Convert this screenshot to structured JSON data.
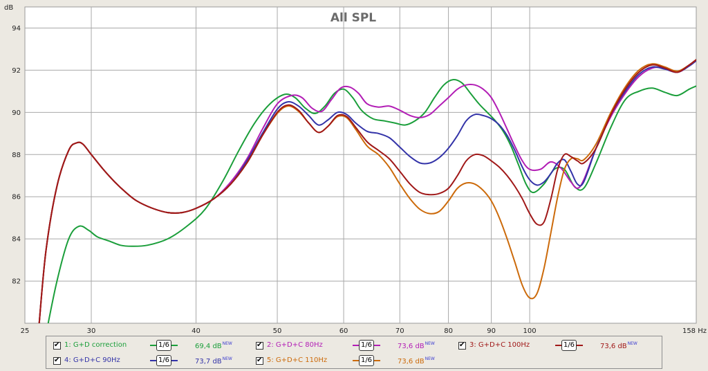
{
  "chart_data": {
    "type": "line",
    "title": "All SPL",
    "ylabel": "dB",
    "xlabel": "Hz",
    "xscale": "log",
    "xlim": [
      25,
      158
    ],
    "ylim": [
      80,
      95
    ],
    "grid": true,
    "x_ticks": [
      25,
      30,
      40,
      50,
      60,
      70,
      80,
      90,
      100,
      158
    ],
    "x_tick_labels": [
      "25",
      "30",
      "40",
      "50",
      "60",
      "70",
      "80",
      "90",
      "100",
      "158 Hz"
    ],
    "y_ticks": [
      82,
      84,
      86,
      88,
      90,
      92,
      94
    ],
    "y_tick_labels": [
      "82",
      "84",
      "86",
      "88",
      "90",
      "92",
      "94"
    ],
    "series": [
      {
        "name": "1: G+D correction",
        "color": "#1a9e3a",
        "smoothing": "1/6",
        "level": "69,4 dB",
        "badge": "NEW",
        "x": [
          26.5,
          27.3,
          28.2,
          29.0,
          29.8,
          30.5,
          31.5,
          32.5,
          33.5,
          35.0,
          37.0,
          39.0,
          41.0,
          43.0,
          45.0,
          47.0,
          49.0,
          51.0,
          52.5,
          54.0,
          55.5,
          57.0,
          58.5,
          60.0,
          61.5,
          63.0,
          65.0,
          67.0,
          69.0,
          71.0,
          73.0,
          75.0,
          77.0,
          79.0,
          81.0,
          83.0,
          85.0,
          87.0,
          89.0,
          91.0,
          93.0,
          95.0,
          97.0,
          99.0,
          101.0,
          104.0,
          107.0,
          110.0,
          113.0,
          116.0,
          120.0,
          125.0,
          130.0,
          135.0,
          140.0,
          145.0,
          150.0,
          155.0,
          158.0
        ],
        "values": [
          79.5,
          82.0,
          84.0,
          84.6,
          84.4,
          84.1,
          83.9,
          83.7,
          83.65,
          83.7,
          84.0,
          84.6,
          85.4,
          86.7,
          88.2,
          89.5,
          90.4,
          90.85,
          90.7,
          90.2,
          89.95,
          90.3,
          90.9,
          91.1,
          90.7,
          90.1,
          89.7,
          89.6,
          89.5,
          89.4,
          89.6,
          90.0,
          90.7,
          91.3,
          91.55,
          91.4,
          90.9,
          90.4,
          90.0,
          89.6,
          89.1,
          88.4,
          87.5,
          86.6,
          86.2,
          86.6,
          87.3,
          87.3,
          86.5,
          86.4,
          87.6,
          89.3,
          90.6,
          91.0,
          91.15,
          90.95,
          90.8,
          91.1,
          91.25
        ]
      },
      {
        "name": "2: G+D+C 80Hz",
        "color": "#b21db5",
        "smoothing": "1/6",
        "level": "73,6 dB",
        "badge": "NEW",
        "x": [
          26.0,
          26.5,
          27.3,
          28.2,
          28.8,
          29.3,
          30.0,
          31.0,
          32.0,
          33.0,
          34.0,
          35.5,
          37.0,
          38.5,
          40.0,
          42.0,
          44.0,
          46.0,
          48.0,
          50.0,
          52.0,
          53.5,
          55.0,
          56.5,
          58.0,
          59.5,
          61.0,
          62.5,
          64.0,
          66.0,
          68.0,
          70.0,
          72.0,
          74.0,
          76.0,
          78.0,
          80.0,
          82.0,
          84.0,
          86.0,
          88.0,
          90.0,
          92.0,
          94.0,
          96.0,
          98.0,
          100.0,
          103.0,
          106.0,
          109.0,
          112.0,
          114.0,
          116.0,
          120.0,
          125.0,
          130.0,
          135.0,
          140.0,
          145.0,
          150.0,
          155.0,
          158.0
        ],
        "values": [
          80.0,
          83.5,
          86.5,
          88.2,
          88.55,
          88.5,
          88.0,
          87.3,
          86.7,
          86.2,
          85.8,
          85.45,
          85.25,
          85.25,
          85.45,
          85.9,
          86.7,
          87.8,
          89.2,
          90.4,
          90.8,
          90.7,
          90.2,
          90.05,
          90.6,
          91.15,
          91.2,
          90.9,
          90.4,
          90.25,
          90.3,
          90.1,
          89.85,
          89.75,
          89.9,
          90.3,
          90.7,
          91.1,
          91.3,
          91.3,
          91.1,
          90.7,
          90.0,
          89.2,
          88.4,
          87.7,
          87.3,
          87.3,
          87.65,
          87.35,
          86.7,
          86.4,
          86.8,
          88.3,
          89.8,
          90.9,
          91.7,
          92.1,
          92.1,
          91.9,
          92.2,
          92.45
        ]
      },
      {
        "name": "3: G+D+C 100Hz",
        "color": "#a01818",
        "smoothing": "1/6",
        "level": "73,6 dB",
        "badge": "NEW",
        "x": [
          26.0,
          26.5,
          27.3,
          28.2,
          28.8,
          29.3,
          30.0,
          31.0,
          32.0,
          33.0,
          34.0,
          35.5,
          37.0,
          38.5,
          40.0,
          42.0,
          44.0,
          46.0,
          48.0,
          50.0,
          51.5,
          53.0,
          54.5,
          56.0,
          57.5,
          59.0,
          60.5,
          62.0,
          64.0,
          66.0,
          68.0,
          70.0,
          72.0,
          74.0,
          76.0,
          78.0,
          80.0,
          82.0,
          84.0,
          86.0,
          88.0,
          90.0,
          92.0,
          94.0,
          96.0,
          98.0,
          100.0,
          102.0,
          104.0,
          106.0,
          108.0,
          110.0,
          112.0,
          114.0,
          116.0,
          120.0,
          125.0,
          130.0,
          135.0,
          140.0,
          145.0,
          150.0,
          155.0,
          158.0
        ],
        "values": [
          80.0,
          83.5,
          86.5,
          88.2,
          88.55,
          88.5,
          88.0,
          87.3,
          86.7,
          86.2,
          85.8,
          85.45,
          85.25,
          85.25,
          85.45,
          85.9,
          86.6,
          87.6,
          88.9,
          90.0,
          90.35,
          90.1,
          89.5,
          89.05,
          89.35,
          89.85,
          89.8,
          89.3,
          88.6,
          88.2,
          87.8,
          87.2,
          86.6,
          86.2,
          86.1,
          86.15,
          86.4,
          87.0,
          87.7,
          88.0,
          87.95,
          87.7,
          87.4,
          87.0,
          86.5,
          85.9,
          85.2,
          84.7,
          84.8,
          85.9,
          87.3,
          88.0,
          87.9,
          87.7,
          87.6,
          88.3,
          89.9,
          91.1,
          91.9,
          92.25,
          92.1,
          91.9,
          92.25,
          92.5
        ]
      },
      {
        "name": "4: G+D+C 90Hz",
        "color": "#3333a8",
        "smoothing": "1/6",
        "level": "73,7 dB",
        "badge": "NEW",
        "x": [
          26.0,
          26.5,
          27.3,
          28.2,
          28.8,
          29.3,
          30.0,
          31.0,
          32.0,
          33.0,
          34.0,
          35.5,
          37.0,
          38.5,
          40.0,
          42.0,
          44.0,
          46.0,
          48.0,
          50.0,
          51.5,
          53.0,
          54.5,
          56.0,
          57.5,
          59.0,
          60.5,
          62.0,
          64.0,
          66.0,
          68.0,
          70.0,
          72.0,
          74.0,
          76.0,
          78.0,
          80.0,
          82.0,
          84.0,
          86.0,
          88.0,
          90.0,
          92.0,
          94.0,
          96.0,
          98.0,
          100.0,
          102.0,
          104.0,
          106.0,
          108.0,
          110.0,
          112.0,
          114.0,
          116.0,
          120.0,
          125.0,
          130.0,
          135.0,
          140.0,
          145.0,
          150.0,
          155.0,
          158.0
        ],
        "values": [
          80.0,
          83.5,
          86.5,
          88.2,
          88.55,
          88.5,
          88.0,
          87.3,
          86.7,
          86.2,
          85.8,
          85.45,
          85.25,
          85.25,
          85.45,
          85.9,
          86.6,
          87.7,
          89.0,
          90.15,
          90.5,
          90.3,
          89.85,
          89.4,
          89.65,
          90.0,
          89.9,
          89.5,
          89.1,
          89.0,
          88.8,
          88.35,
          87.9,
          87.6,
          87.6,
          87.85,
          88.3,
          88.9,
          89.6,
          89.9,
          89.85,
          89.7,
          89.4,
          88.9,
          88.2,
          87.4,
          86.8,
          86.55,
          86.7,
          87.1,
          87.6,
          87.75,
          87.2,
          86.6,
          86.7,
          88.3,
          89.9,
          91.0,
          91.8,
          92.15,
          92.05,
          91.9,
          92.2,
          92.45
        ]
      },
      {
        "name": "5: G+D+C 110Hz",
        "color": "#cc6a0a",
        "smoothing": "1/6",
        "level": "73,6 dB",
        "badge": "NEW",
        "x": [
          26.0,
          26.5,
          27.3,
          28.2,
          28.8,
          29.3,
          30.0,
          31.0,
          32.0,
          33.0,
          34.0,
          35.5,
          37.0,
          38.5,
          40.0,
          42.0,
          44.0,
          46.0,
          48.0,
          50.0,
          51.5,
          53.0,
          54.5,
          56.0,
          57.5,
          59.0,
          60.5,
          62.0,
          64.0,
          66.0,
          68.0,
          70.0,
          72.0,
          74.0,
          76.0,
          78.0,
          80.0,
          82.0,
          84.0,
          86.0,
          88.0,
          90.0,
          92.0,
          94.0,
          96.0,
          98.0,
          100.0,
          102.0,
          104.0,
          106.0,
          108.0,
          110.0,
          112.0,
          114.0,
          116.0,
          120.0,
          125.0,
          130.0,
          135.0,
          140.0,
          145.0,
          150.0,
          155.0,
          158.0
        ],
        "values": [
          80.0,
          83.5,
          86.5,
          88.2,
          88.55,
          88.5,
          88.0,
          87.3,
          86.7,
          86.2,
          85.8,
          85.45,
          85.25,
          85.25,
          85.45,
          85.9,
          86.6,
          87.6,
          88.9,
          89.95,
          90.3,
          90.05,
          89.5,
          89.05,
          89.35,
          89.8,
          89.75,
          89.2,
          88.4,
          88.0,
          87.4,
          86.6,
          85.9,
          85.4,
          85.2,
          85.3,
          85.8,
          86.4,
          86.65,
          86.6,
          86.3,
          85.8,
          85.0,
          84.0,
          82.9,
          81.8,
          81.2,
          81.4,
          82.6,
          84.3,
          86.0,
          87.3,
          87.8,
          87.8,
          87.75,
          88.5,
          90.0,
          91.2,
          92.0,
          92.3,
          92.15,
          91.95,
          92.25,
          92.5
        ]
      }
    ]
  }
}
